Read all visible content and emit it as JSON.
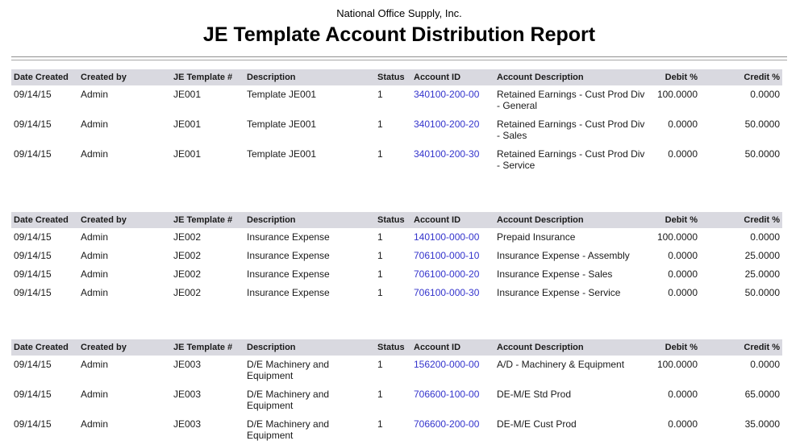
{
  "header": {
    "company": "National Office Supply, Inc.",
    "title": "JE Template Account Distribution Report"
  },
  "colors": {
    "accent_link": "#3333cc",
    "header_bg": "#d9d9e0",
    "rule": "#8f8f8f"
  },
  "columns": {
    "date_created": "Date Created",
    "created_by": "Created by",
    "je_template": "JE Template #",
    "description": "Description",
    "status": "Status",
    "account_id": "Account ID",
    "account_description": "Account Description",
    "debit_pct": "Debit %",
    "credit_pct": "Credit %"
  },
  "sections": [
    {
      "rows": [
        {
          "date_created": "09/14/15",
          "created_by": "Admin",
          "je_template": "JE001",
          "description": "Template JE001",
          "status": "1",
          "account_id": "340100-200-00",
          "account_description": "Retained Earnings - Cust Prod Div - General",
          "debit_pct": "100.0000",
          "credit_pct": "0.0000"
        },
        {
          "date_created": "09/14/15",
          "created_by": "Admin",
          "je_template": "JE001",
          "description": "Template JE001",
          "status": "1",
          "account_id": "340100-200-20",
          "account_description": "Retained Earnings - Cust Prod Div - Sales",
          "debit_pct": "0.0000",
          "credit_pct": "50.0000"
        },
        {
          "date_created": "09/14/15",
          "created_by": "Admin",
          "je_template": "JE001",
          "description": "Template JE001",
          "status": "1",
          "account_id": "340100-200-30",
          "account_description": "Retained Earnings - Cust Prod Div - Service",
          "debit_pct": "0.0000",
          "credit_pct": "50.0000"
        }
      ]
    },
    {
      "rows": [
        {
          "date_created": "09/14/15",
          "created_by": "Admin",
          "je_template": "JE002",
          "description": "Insurance Expense",
          "status": "1",
          "account_id": "140100-000-00",
          "account_description": "Prepaid Insurance",
          "debit_pct": "100.0000",
          "credit_pct": "0.0000"
        },
        {
          "date_created": "09/14/15",
          "created_by": "Admin",
          "je_template": "JE002",
          "description": "Insurance Expense",
          "status": "1",
          "account_id": "706100-000-10",
          "account_description": "Insurance Expense - Assembly",
          "debit_pct": "0.0000",
          "credit_pct": "25.0000"
        },
        {
          "date_created": "09/14/15",
          "created_by": "Admin",
          "je_template": "JE002",
          "description": "Insurance Expense",
          "status": "1",
          "account_id": "706100-000-20",
          "account_description": "Insurance Expense - Sales",
          "debit_pct": "0.0000",
          "credit_pct": "25.0000"
        },
        {
          "date_created": "09/14/15",
          "created_by": "Admin",
          "je_template": "JE002",
          "description": "Insurance Expense",
          "status": "1",
          "account_id": "706100-000-30",
          "account_description": "Insurance Expense - Service",
          "debit_pct": "0.0000",
          "credit_pct": "50.0000"
        }
      ]
    },
    {
      "rows": [
        {
          "date_created": "09/14/15",
          "created_by": "Admin",
          "je_template": "JE003",
          "description": "D/E Machinery and Equipment",
          "status": "1",
          "account_id": "156200-000-00",
          "account_description": "A/D - Machinery & Equipment",
          "debit_pct": "100.0000",
          "credit_pct": "0.0000"
        },
        {
          "date_created": "09/14/15",
          "created_by": "Admin",
          "je_template": "JE003",
          "description": "D/E Machinery and Equipment",
          "status": "1",
          "account_id": "706600-100-00",
          "account_description": "DE-M/E Std Prod",
          "debit_pct": "0.0000",
          "credit_pct": "65.0000"
        },
        {
          "date_created": "09/14/15",
          "created_by": "Admin",
          "je_template": "JE003",
          "description": "D/E Machinery and Equipment",
          "status": "1",
          "account_id": "706600-200-00",
          "account_description": "DE-M/E Cust Prod",
          "debit_pct": "0.0000",
          "credit_pct": "35.0000"
        }
      ]
    }
  ]
}
